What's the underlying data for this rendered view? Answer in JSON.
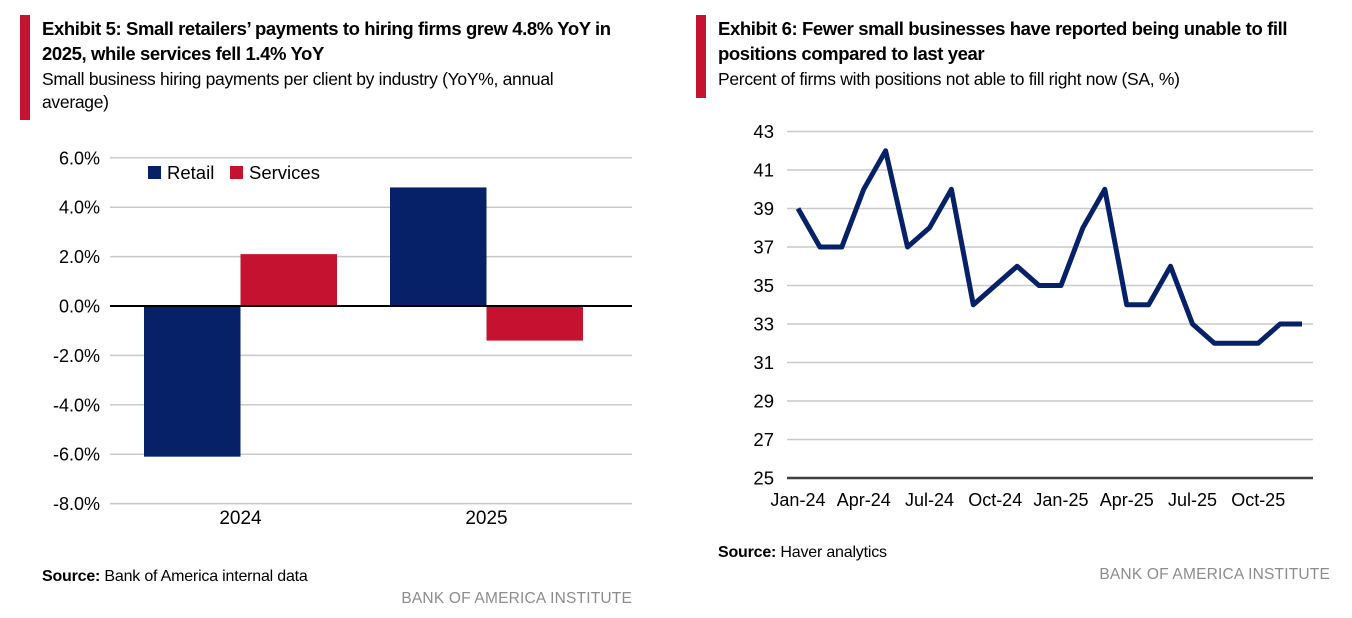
{
  "colors": {
    "navy": "#072169",
    "crimson": "#c41230",
    "grid_line": "#c9c9c9",
    "zero_axis": "#000000",
    "baseline_axis": "#3f3f3f",
    "footer_text": "#8c8c8c",
    "text": "#000000"
  },
  "exhibit5": {
    "title": "Exhibit 5: Small retailers’ payments to hiring firms grew 4.8% YoY in 2025, while services fell 1.4% YoY",
    "subtitle": "Small business hiring payments per client by industry (YoY%, annual average)",
    "source_label": "Source:",
    "source_text": " Bank of America internal data",
    "footer": "BANK OF AMERICA INSTITUTE"
  },
  "exhibit6": {
    "title": "Exhibit 6: Fewer small businesses have reported being unable to fill positions compared to last year",
    "subtitle": "Percent of firms with positions not able to fill right now (SA, %)",
    "source_label": "Source:",
    "source_text": " Haver analytics",
    "footer": "BANK OF AMERICA INSTITUTE"
  },
  "chart_data": [
    {
      "type": "bar",
      "title": "Small business hiring payments per client by industry (YoY%, annual average)",
      "categories": [
        "2024",
        "2025"
      ],
      "series": [
        {
          "name": "Retail",
          "color": "navy",
          "values": [
            -6.1,
            4.8
          ]
        },
        {
          "name": "Services",
          "color": "crimson",
          "values": [
            2.1,
            -1.4
          ]
        }
      ],
      "y_axis": {
        "ticks": [
          6,
          4,
          2,
          0,
          -2,
          -4,
          -6,
          -8
        ],
        "tick_labels": [
          "6.0%",
          "4.0%",
          "2.0%",
          "0.0%",
          "-2.0%",
          "-4.0%",
          "-6.0%",
          "-8.0%"
        ],
        "ylim": [
          -8,
          6
        ]
      },
      "legend_position": "top",
      "grid": true
    },
    {
      "type": "line",
      "title": "Percent of firms with positions not able to fill right now (SA, %)",
      "months": [
        "Jan-24",
        "Feb-24",
        "Mar-24",
        "Apr-24",
        "May-24",
        "Jun-24",
        "Jul-24",
        "Aug-24",
        "Sep-24",
        "Oct-24",
        "Nov-24",
        "Dec-24",
        "Jan-25",
        "Feb-25",
        "Mar-25",
        "Apr-25",
        "May-25",
        "Jun-25",
        "Jul-25",
        "Aug-25",
        "Sep-25",
        "Oct-25",
        "Nov-25",
        "Dec-25"
      ],
      "values": [
        39,
        37,
        37,
        40,
        42,
        37,
        38,
        40,
        34,
        35,
        36,
        35,
        35,
        38,
        40,
        34,
        34,
        36,
        33,
        32,
        32,
        32,
        33,
        33
      ],
      "x_tick_interval": 3,
      "x_tick_labels": [
        "Jan-24",
        "Apr-24",
        "Jul-24",
        "Oct-24",
        "Jan-25",
        "Apr-25",
        "Jul-25",
        "Oct-25"
      ],
      "y_axis": {
        "ticks": [
          43,
          41,
          39,
          37,
          35,
          33,
          31,
          29,
          27,
          25
        ],
        "tick_labels": [
          "43",
          "41",
          "39",
          "37",
          "35",
          "33",
          "31",
          "29",
          "27",
          "25"
        ],
        "ylim": [
          25,
          43
        ]
      },
      "grid": true,
      "legend_position": "none"
    }
  ]
}
